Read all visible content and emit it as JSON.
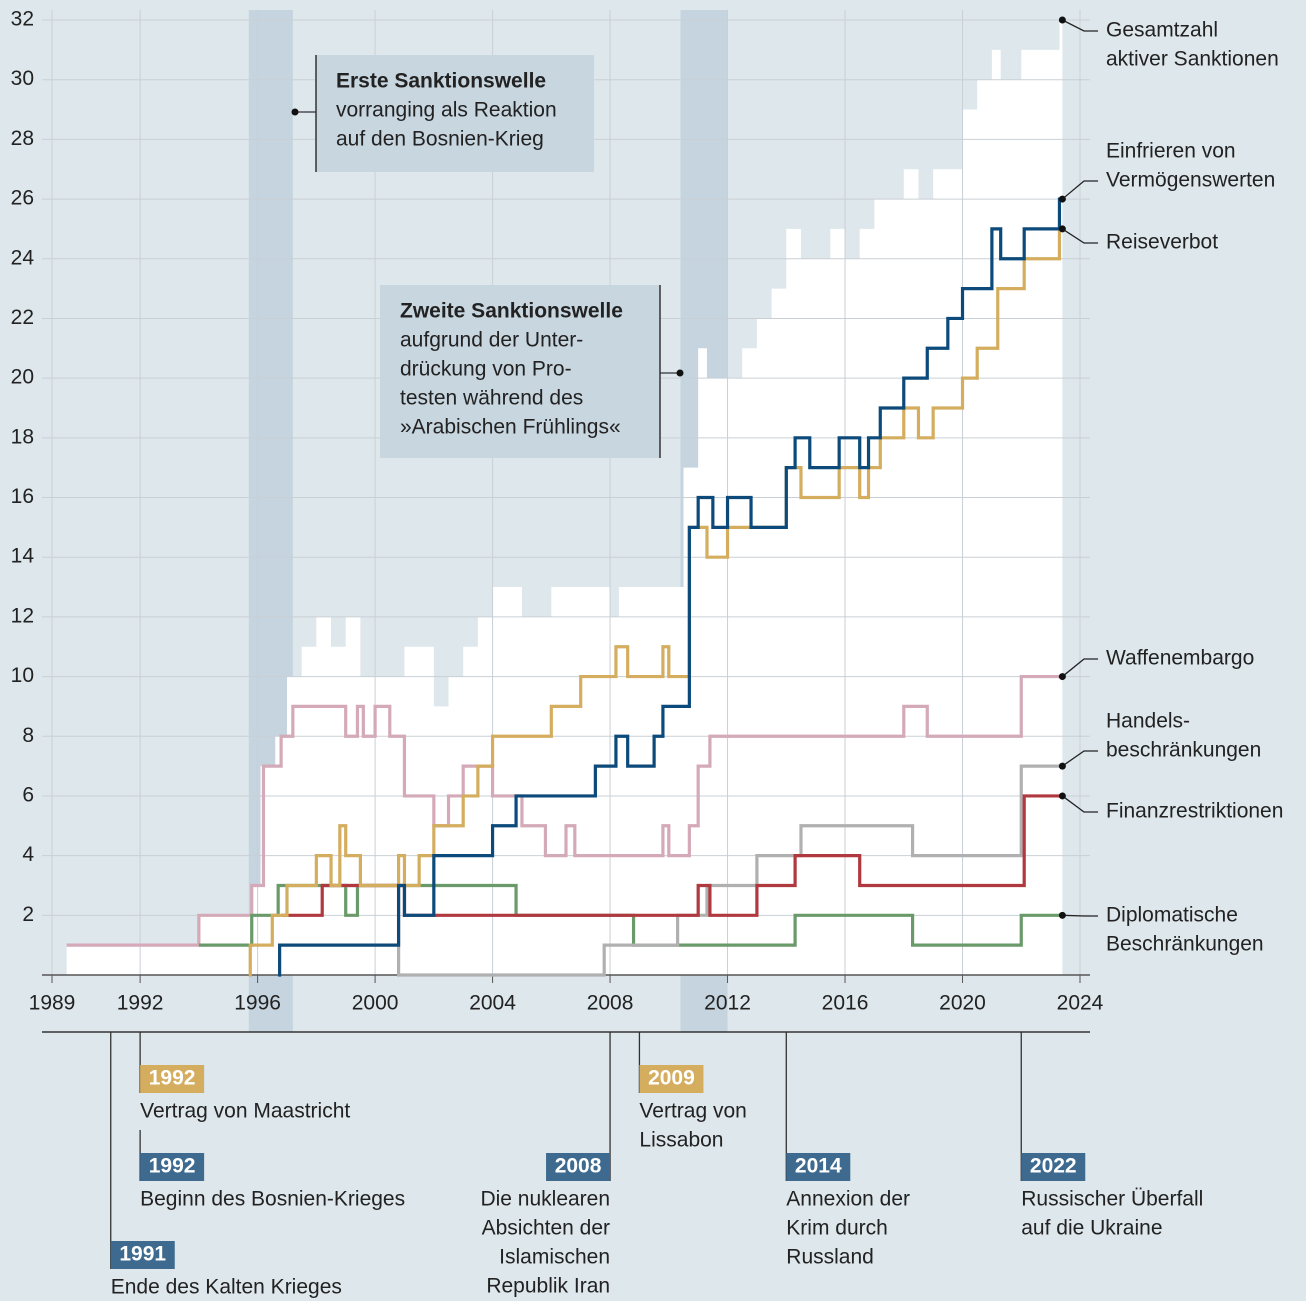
{
  "chart_data": {
    "type": "line",
    "step": "post",
    "xlim": [
      1989,
      2024
    ],
    "ylim": [
      0,
      32
    ],
    "xticks": [
      1989,
      1992,
      1996,
      2000,
      2004,
      2008,
      2012,
      2016,
      2020,
      2024
    ],
    "yticks": [
      2,
      4,
      6,
      8,
      10,
      12,
      14,
      16,
      18,
      20,
      22,
      24,
      26,
      28,
      30,
      32
    ],
    "grid": true,
    "highlight_periods": [
      [
        1995.7,
        1997.2
      ],
      [
        2010.4,
        2012.0
      ]
    ],
    "highlight_color": "#c5d4de",
    "series": [
      {
        "name": [
          "Gesamtzahl",
          "aktiver Sanktionen"
        ],
        "color": "#ffffff",
        "area": true,
        "x": [
          1989.5,
          1994,
          1995.8,
          1996.1,
          1996.6,
          1997,
          1997.5,
          1998,
          1998.5,
          1999,
          1999.5,
          2000,
          2001,
          2002,
          2002.5,
          2003,
          2003.5,
          2004,
          2005,
          2006,
          2007,
          2008,
          2008.3,
          2010,
          2010.5,
          2011,
          2011.3,
          2012,
          2012.5,
          2013,
          2013.5,
          2014,
          2014.5,
          2015.5,
          2016,
          2016.5,
          2017,
          2018,
          2018.5,
          2019,
          2020,
          2020.5,
          2021,
          2021.3,
          2022,
          2023.3,
          2023.4
        ],
        "values": [
          1,
          2,
          3,
          7,
          8,
          10,
          11,
          12,
          11,
          12,
          10,
          10,
          11,
          9,
          10,
          11,
          12,
          13,
          12,
          13,
          13,
          12,
          13,
          13,
          17,
          21,
          20,
          20,
          21,
          22,
          23,
          25,
          24,
          25,
          24,
          25,
          26,
          27,
          26,
          27,
          29,
          30,
          31,
          30,
          31,
          32,
          32
        ]
      },
      {
        "name": [
          "Einfrieren von",
          "Vermögenswerten"
        ],
        "color": "#0b4a7a",
        "x": [
          1996.7,
          1996.75,
          2000.8,
          2001,
          2002,
          2004,
          2004.8,
          2007.5,
          2008.2,
          2008.6,
          2009.5,
          2009.8,
          2010.7,
          2011,
          2011.5,
          2012,
          2012.8,
          2014,
          2014.3,
          2014.8,
          2015.8,
          2016.5,
          2016.8,
          2017.2,
          2018,
          2018.8,
          2019.5,
          2020,
          2021,
          2021.3,
          2022.1,
          2023.3,
          2023.4
        ],
        "values": [
          0,
          1,
          3,
          2,
          4,
          5,
          6,
          7,
          8,
          7,
          8,
          9,
          15,
          16,
          15,
          16,
          15,
          17,
          18,
          17,
          18,
          17,
          18,
          19,
          20,
          21,
          22,
          23,
          25,
          24,
          25,
          26,
          26
        ]
      },
      {
        "name": [
          "Reiseverbot"
        ],
        "color": "#d4ad5f",
        "x": [
          1995.7,
          1995.75,
          1996.5,
          1997,
          1998,
          1998.5,
          1998.8,
          1999,
          1999.5,
          2000.8,
          2001,
          2001.5,
          2002,
          2003,
          2003.5,
          2004,
          2006,
          2007,
          2008.2,
          2008.6,
          2009.8,
          2010,
          2010.7,
          2011.3,
          2012,
          2014,
          2014.5,
          2015.8,
          2016.5,
          2016.8,
          2017.2,
          2018,
          2018.5,
          2019,
          2020,
          2020.5,
          2021.2,
          2022.1,
          2023.3,
          2023.4
        ],
        "values": [
          0,
          1,
          2,
          3,
          4,
          3,
          5,
          4,
          3,
          4,
          3,
          4,
          5,
          6,
          7,
          8,
          9,
          10,
          11,
          10,
          11,
          10,
          15,
          14,
          15,
          17,
          16,
          17,
          16,
          17,
          18,
          19,
          18,
          19,
          20,
          21,
          23,
          24,
          25,
          25
        ]
      },
      {
        "name": [
          "Waffenembargo"
        ],
        "color": "#d4a9b8",
        "x": [
          1989.5,
          1994,
          1995.8,
          1996.2,
          1996.8,
          1997.2,
          1999,
          1999.4,
          1999.6,
          2000,
          2000.5,
          2001,
          2002,
          2002.5,
          2003,
          2004,
          2005,
          2005.8,
          2006.5,
          2006.8,
          2009.8,
          2010,
          2010.7,
          2011,
          2011.4,
          2018,
          2018.8,
          2022,
          2023.4
        ],
        "values": [
          1,
          2,
          3,
          7,
          8,
          9,
          8,
          9,
          8,
          9,
          8,
          6,
          5,
          6,
          7,
          6,
          5,
          4,
          5,
          4,
          5,
          4,
          5,
          7,
          8,
          9,
          8,
          10,
          10
        ]
      },
      {
        "name": [
          "Handels-",
          "beschränkungen"
        ],
        "color": "#b0b0b0",
        "x": [
          1998.2,
          2000.8,
          2007.8,
          2010.3,
          2011.3,
          2013,
          2014.5,
          2018.3,
          2022,
          2023.4
        ],
        "values": [
          3,
          0,
          1,
          2,
          3,
          4,
          5,
          4,
          7,
          7
        ]
      },
      {
        "name": [
          "Finanzrestriktionen"
        ],
        "color": "#b0383f",
        "x": [
          1996.8,
          1998.2,
          2001,
          2011,
          2011.4,
          2013,
          2014.3,
          2016.5,
          2022.1,
          2023.4
        ],
        "values": [
          2,
          3,
          2,
          3,
          2,
          3,
          4,
          3,
          6,
          6
        ]
      },
      {
        "name": [
          "Diplomatische",
          "Beschränkungen"
        ],
        "color": "#6a9a6a",
        "x": [
          1994,
          1995.8,
          1996.7,
          1999,
          1999.4,
          2004.8,
          2008.8,
          2014.3,
          2018.3,
          2022,
          2023.4
        ],
        "values": [
          1,
          2,
          3,
          2,
          3,
          2,
          1,
          2,
          1,
          2,
          2
        ]
      }
    ],
    "annotations": [
      {
        "title": "Erste Sanktionswelle",
        "text": [
          "vorranging als Reaktion",
          "auf den Bosnien-Krieg"
        ]
      },
      {
        "title": "Zweite Sanktionswelle",
        "text": [
          "aufgrund der Unter-",
          "drückung von Pro-",
          "testen während des",
          "»Arabischen Frühlings«"
        ]
      }
    ],
    "events": [
      {
        "year": 1991,
        "color": "#3d6a8e",
        "text": [
          "Ende des Kalten Krieges"
        ]
      },
      {
        "year": 1992,
        "color": "#d4ad5f",
        "text": [
          "Vertrag von Maastricht"
        ]
      },
      {
        "year": 1992,
        "color": "#3d6a8e",
        "text": [
          "Beginn des Bosnien-Krieges"
        ]
      },
      {
        "year": 2008,
        "color": "#3d6a8e",
        "text": [
          "Die nuklearen",
          "Absichten der",
          "Islamischen",
          "Republik Iran"
        ]
      },
      {
        "year": 2009,
        "color": "#d4ad5f",
        "text": [
          "Vertrag von",
          "Lissabon"
        ]
      },
      {
        "year": 2014,
        "color": "#3d6a8e",
        "text": [
          "Annexion der",
          "Krim durch",
          "Russland"
        ]
      },
      {
        "year": 2022,
        "color": "#3d6a8e",
        "text": [
          "Russischer Überfall",
          "auf die Ukraine"
        ]
      }
    ]
  }
}
